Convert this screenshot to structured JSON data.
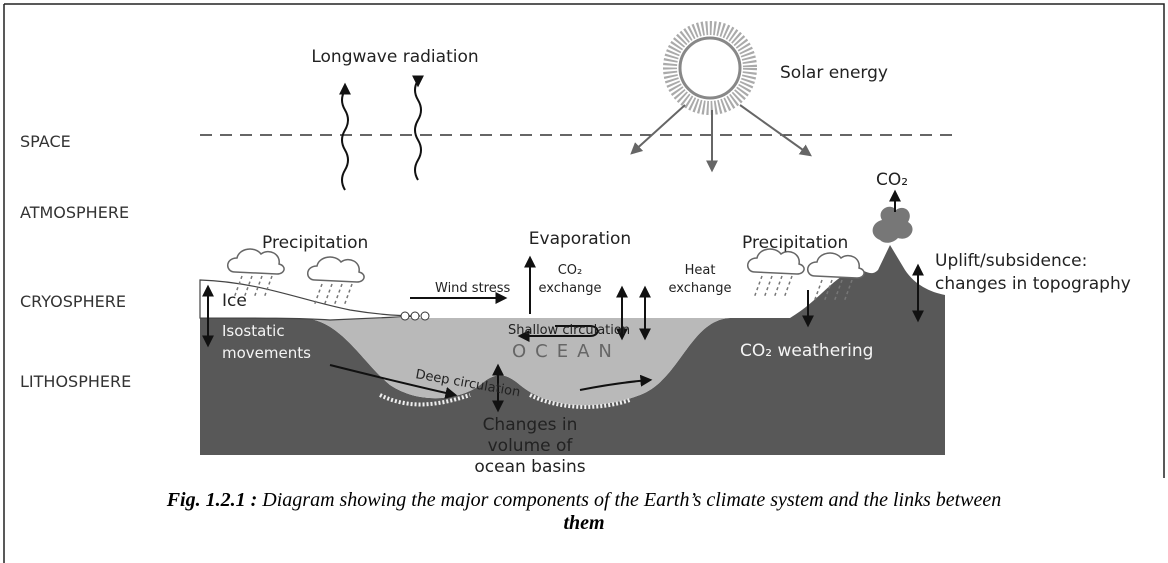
{
  "layers": [
    "SPACE",
    "ATMOSPHERE",
    "CRYOSPHERE",
    "LITHOSPHERE"
  ],
  "labels": {
    "longwave": "Longwave radiation",
    "solar": "Solar energy",
    "co2_volcano": "CO₂",
    "precipitation_left": "Precipitation",
    "evaporation": "Evaporation",
    "co2_exchange": [
      "CO₂",
      "exchange"
    ],
    "heat_exchange": [
      "Heat",
      "exchange"
    ],
    "wind_stress": "Wind stress",
    "ice": "Ice",
    "isostatic": [
      "Isostatic",
      "movements"
    ],
    "shallow_circulation": "Shallow circulation",
    "ocean": "OCEAN",
    "deep_circulation": "Deep circulation",
    "basin_change": [
      "Changes in",
      "volume of",
      "ocean basins"
    ],
    "precipitation_right": "Precipitation",
    "co2_weathering": "CO₂ weathering",
    "uplift": [
      "Uplift/subsidence:",
      "changes in topography"
    ]
  },
  "caption": {
    "label": "Fig. 1.2.1 :",
    "lines": [
      "Diagram showing the major components of the Earth’s climate system and the links between",
      "them"
    ]
  }
}
